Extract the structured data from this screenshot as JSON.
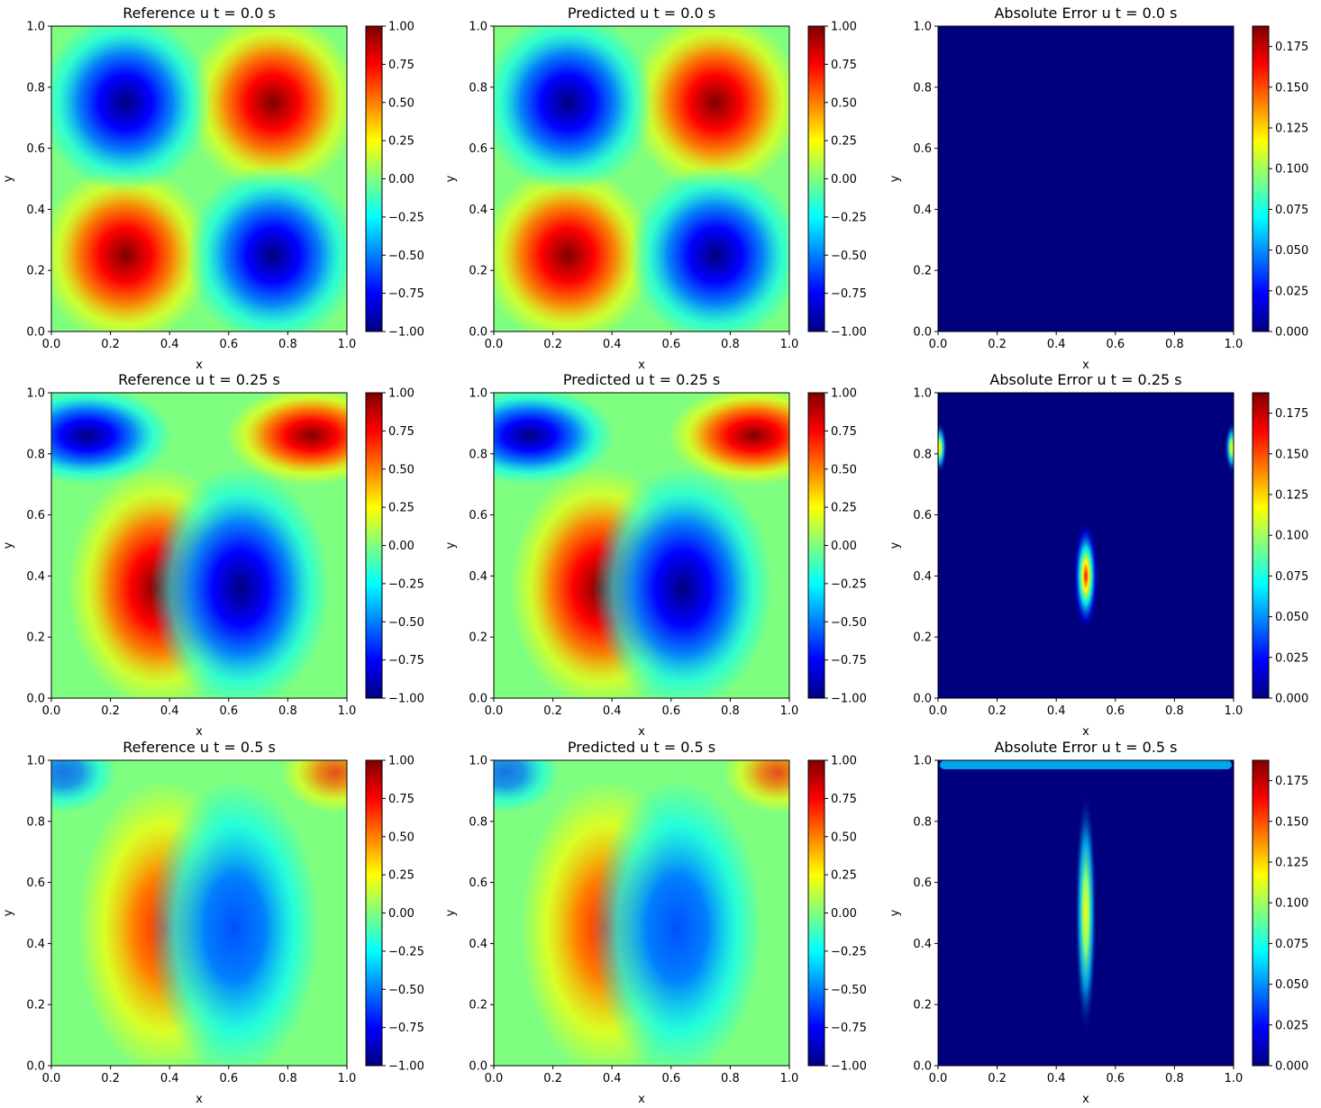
{
  "colormap": "jet",
  "jet_colors": [
    "#00007f",
    "#0000ff",
    "#007fff",
    "#00ffff",
    "#7fff7f",
    "#ffff00",
    "#ff7f00",
    "#ff0000",
    "#7f0000"
  ],
  "chart_data": [
    {
      "type": "heatmap",
      "title": "Reference u t = 0.0 s",
      "xlabel": "x",
      "ylabel": "y",
      "field": "u",
      "t": 0.0,
      "variant": "reference",
      "x_range": [
        0,
        1
      ],
      "y_range": [
        0,
        1
      ],
      "xticks": [
        "0.0",
        "0.2",
        "0.4",
        "0.6",
        "0.8",
        "1.0"
      ],
      "yticks": [
        "0.0",
        "0.2",
        "0.4",
        "0.6",
        "0.8",
        "1.0"
      ],
      "colorbar": {
        "vmin": -1.0,
        "vmax": 1.0,
        "ticks": [
          "−1.00",
          "−0.75",
          "−0.50",
          "−0.25",
          "0.00",
          "0.25",
          "0.50",
          "0.75",
          "1.00"
        ]
      }
    },
    {
      "type": "heatmap",
      "title": "Predicted u t = 0.0 s",
      "xlabel": "x",
      "ylabel": "y",
      "field": "u",
      "t": 0.0,
      "variant": "predicted",
      "x_range": [
        0,
        1
      ],
      "y_range": [
        0,
        1
      ],
      "xticks": [
        "0.0",
        "0.2",
        "0.4",
        "0.6",
        "0.8",
        "1.0"
      ],
      "yticks": [
        "0.0",
        "0.2",
        "0.4",
        "0.6",
        "0.8",
        "1.0"
      ],
      "colorbar": {
        "vmin": -1.0,
        "vmax": 1.0,
        "ticks": [
          "−1.00",
          "−0.75",
          "−0.50",
          "−0.25",
          "0.00",
          "0.25",
          "0.50",
          "0.75",
          "1.00"
        ]
      }
    },
    {
      "type": "heatmap",
      "title": "Absolute Error u t = 0.0 s",
      "xlabel": "x",
      "ylabel": "y",
      "field": "u",
      "t": 0.0,
      "variant": "error",
      "x_range": [
        0,
        1
      ],
      "y_range": [
        0,
        1
      ],
      "xticks": [
        "0.0",
        "0.2",
        "0.4",
        "0.6",
        "0.8",
        "1.0"
      ],
      "yticks": [
        "0.0",
        "0.2",
        "0.4",
        "0.6",
        "0.8",
        "1.0"
      ],
      "colorbar": {
        "vmin": 0.0,
        "vmax": 0.1875,
        "ticks": [
          "0.000",
          "0.025",
          "0.050",
          "0.075",
          "0.100",
          "0.125",
          "0.150",
          "0.175"
        ]
      }
    },
    {
      "type": "heatmap",
      "title": "Reference u t = 0.25 s",
      "xlabel": "x",
      "ylabel": "y",
      "field": "u",
      "t": 0.25,
      "variant": "reference",
      "x_range": [
        0,
        1
      ],
      "y_range": [
        0,
        1
      ],
      "xticks": [
        "0.0",
        "0.2",
        "0.4",
        "0.6",
        "0.8",
        "1.0"
      ],
      "yticks": [
        "0.0",
        "0.2",
        "0.4",
        "0.6",
        "0.8",
        "1.0"
      ],
      "colorbar": {
        "vmin": -1.0,
        "vmax": 1.0,
        "ticks": [
          "−1.00",
          "−0.75",
          "−0.50",
          "−0.25",
          "0.00",
          "0.25",
          "0.50",
          "0.75",
          "1.00"
        ]
      }
    },
    {
      "type": "heatmap",
      "title": "Predicted u t = 0.25 s",
      "xlabel": "x",
      "ylabel": "y",
      "field": "u",
      "t": 0.25,
      "variant": "predicted",
      "x_range": [
        0,
        1
      ],
      "y_range": [
        0,
        1
      ],
      "xticks": [
        "0.0",
        "0.2",
        "0.4",
        "0.6",
        "0.8",
        "1.0"
      ],
      "yticks": [
        "0.0",
        "0.2",
        "0.4",
        "0.6",
        "0.8",
        "1.0"
      ],
      "colorbar": {
        "vmin": -1.0,
        "vmax": 1.0,
        "ticks": [
          "−1.00",
          "−0.75",
          "−0.50",
          "−0.25",
          "0.00",
          "0.25",
          "0.50",
          "0.75",
          "1.00"
        ]
      }
    },
    {
      "type": "heatmap",
      "title": "Absolute Error u t = 0.25 s",
      "xlabel": "x",
      "ylabel": "y",
      "field": "u",
      "t": 0.25,
      "variant": "error",
      "x_range": [
        0,
        1
      ],
      "y_range": [
        0,
        1
      ],
      "xticks": [
        "0.0",
        "0.2",
        "0.4",
        "0.6",
        "0.8",
        "1.0"
      ],
      "yticks": [
        "0.0",
        "0.2",
        "0.4",
        "0.6",
        "0.8",
        "1.0"
      ],
      "colorbar": {
        "vmin": 0.0,
        "vmax": 0.1875,
        "ticks": [
          "0.000",
          "0.025",
          "0.050",
          "0.075",
          "0.100",
          "0.125",
          "0.150",
          "0.175"
        ]
      }
    },
    {
      "type": "heatmap",
      "title": "Reference u t = 0.5 s",
      "xlabel": "x",
      "ylabel": "y",
      "field": "u",
      "t": 0.5,
      "variant": "reference",
      "x_range": [
        0,
        1
      ],
      "y_range": [
        0,
        1
      ],
      "xticks": [
        "0.0",
        "0.2",
        "0.4",
        "0.6",
        "0.8",
        "1.0"
      ],
      "yticks": [
        "0.0",
        "0.2",
        "0.4",
        "0.6",
        "0.8",
        "1.0"
      ],
      "colorbar": {
        "vmin": -1.0,
        "vmax": 1.0,
        "ticks": [
          "−1.00",
          "−0.75",
          "−0.50",
          "−0.25",
          "0.00",
          "0.25",
          "0.50",
          "0.75",
          "1.00"
        ]
      }
    },
    {
      "type": "heatmap",
      "title": "Predicted u t = 0.5 s",
      "xlabel": "x",
      "ylabel": "y",
      "field": "u",
      "t": 0.5,
      "variant": "predicted",
      "x_range": [
        0,
        1
      ],
      "y_range": [
        0,
        1
      ],
      "xticks": [
        "0.0",
        "0.2",
        "0.4",
        "0.6",
        "0.8",
        "1.0"
      ],
      "yticks": [
        "0.0",
        "0.2",
        "0.4",
        "0.6",
        "0.8",
        "1.0"
      ],
      "colorbar": {
        "vmin": -1.0,
        "vmax": 1.0,
        "ticks": [
          "−1.00",
          "−0.75",
          "−0.50",
          "−0.25",
          "0.00",
          "0.25",
          "0.50",
          "0.75",
          "1.00"
        ]
      }
    },
    {
      "type": "heatmap",
      "title": "Absolute Error u t = 0.5 s",
      "xlabel": "x",
      "ylabel": "y",
      "field": "u",
      "t": 0.5,
      "variant": "error",
      "x_range": [
        0,
        1
      ],
      "y_range": [
        0,
        1
      ],
      "xticks": [
        "0.0",
        "0.2",
        "0.4",
        "0.6",
        "0.8",
        "1.0"
      ],
      "yticks": [
        "0.0",
        "0.2",
        "0.4",
        "0.6",
        "0.8",
        "1.0"
      ],
      "colorbar": {
        "vmin": 0.0,
        "vmax": 0.1875,
        "ticks": [
          "0.000",
          "0.025",
          "0.050",
          "0.075",
          "0.100",
          "0.125",
          "0.150",
          "0.175"
        ]
      }
    }
  ]
}
